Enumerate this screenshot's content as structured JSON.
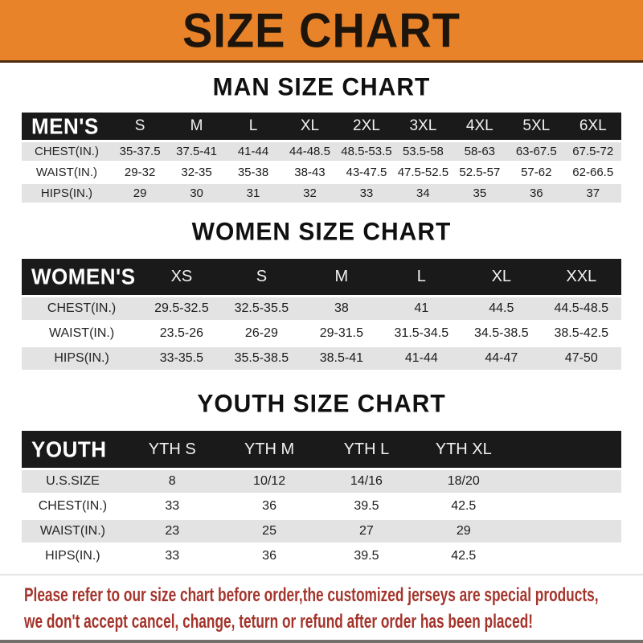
{
  "banner": {
    "title": "SIZE CHART"
  },
  "colors": {
    "banner_bg": "#E9832A",
    "bar_bg": "#1A1A1A",
    "row_alt": "#E3E3E3",
    "footer_text": "#A4352C"
  },
  "sections": [
    {
      "heading": "MAN SIZE CHART",
      "header_label": "MEN'S",
      "columns": [
        "S",
        "M",
        "L",
        "XL",
        "2XL",
        "3XL",
        "4XL",
        "5XL",
        "6XL"
      ],
      "rows": [
        {
          "label": "CHEST(IN.)",
          "values": [
            "35-37.5",
            "37.5-41",
            "41-44",
            "44-48.5",
            "48.5-53.5",
            "53.5-58",
            "58-63",
            "63-67.5",
            "67.5-72"
          ]
        },
        {
          "label": "WAIST(IN.)",
          "values": [
            "29-32",
            "32-35",
            "35-38",
            "38-43",
            "43-47.5",
            "47.5-52.5",
            "52.5-57",
            "57-62",
            "62-66.5"
          ]
        },
        {
          "label": "HIPS(IN.)",
          "values": [
            "29",
            "30",
            "31",
            "32",
            "33",
            "34",
            "35",
            "36",
            "37"
          ]
        }
      ]
    },
    {
      "heading": "WOMEN SIZE CHART",
      "header_label": "WOMEN'S",
      "columns": [
        "XS",
        "S",
        "M",
        "L",
        "XL",
        "XXL"
      ],
      "rows": [
        {
          "label": "CHEST(IN.)",
          "values": [
            "29.5-32.5",
            "32.5-35.5",
            "38",
            "41",
            "44.5",
            "44.5-48.5"
          ]
        },
        {
          "label": "WAIST(IN.)",
          "values": [
            "23.5-26",
            "26-29",
            "29-31.5",
            "31.5-34.5",
            "34.5-38.5",
            "38.5-42.5"
          ]
        },
        {
          "label": "HIPS(IN.)",
          "values": [
            "33-35.5",
            "35.5-38.5",
            "38.5-41",
            "41-44",
            "44-47",
            "47-50"
          ]
        }
      ]
    },
    {
      "heading": "YOUTH SIZE CHART",
      "header_label": "YOUTH",
      "columns": [
        "YTH S",
        "YTH M",
        "YTH L",
        "YTH XL"
      ],
      "rows": [
        {
          "label": "U.S.SIZE",
          "values": [
            "8",
            "10/12",
            "14/16",
            "18/20"
          ]
        },
        {
          "label": "CHEST(IN.)",
          "values": [
            "33",
            "36",
            "39.5",
            "42.5"
          ]
        },
        {
          "label": "WAIST(IN.)",
          "values": [
            "23",
            "25",
            "27",
            "29"
          ]
        },
        {
          "label": "HIPS(IN.)",
          "values": [
            "33",
            "36",
            "39.5",
            "42.5"
          ]
        }
      ]
    }
  ],
  "footer": {
    "line1": "Please refer to our size chart before order,the customized jerseys are special products,",
    "line2": "we don't accept cancel, change, teturn or refund after order has been placed!"
  }
}
